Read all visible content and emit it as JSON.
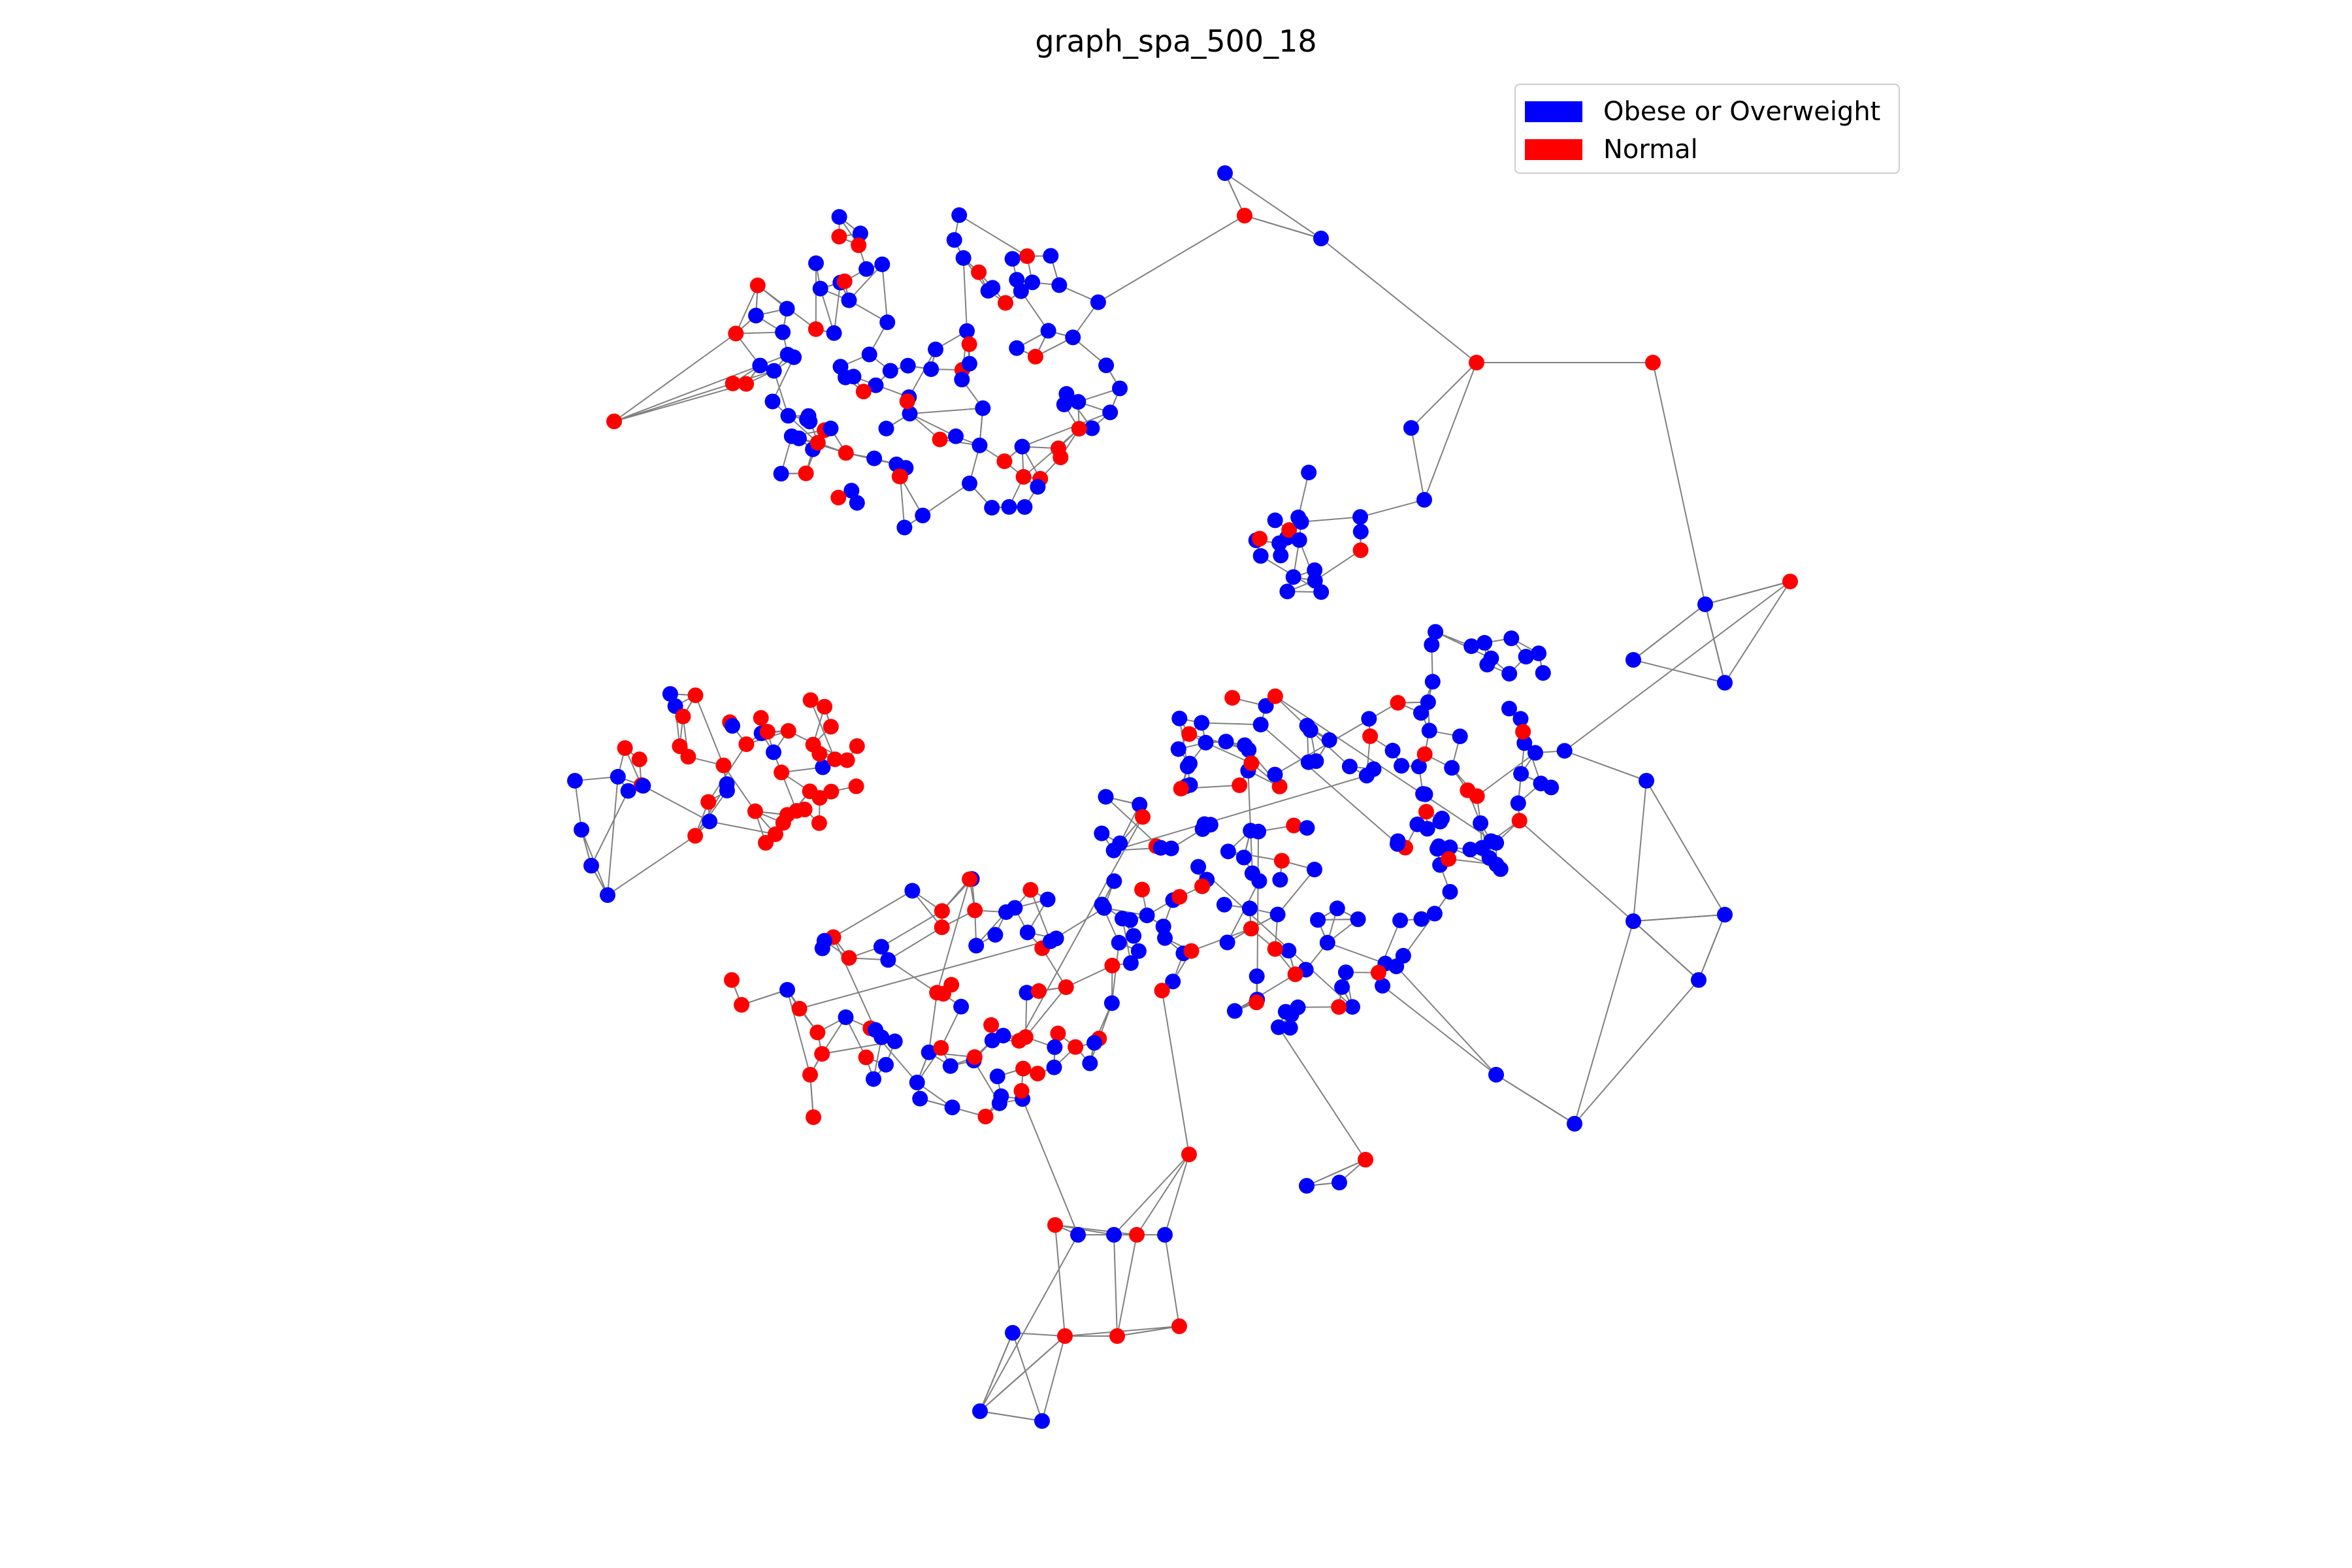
{
  "figure": {
    "title": "graph_spa_500_18"
  },
  "legend": {
    "items": [
      {
        "label": "Obese or Overweight",
        "color": "#0000ff"
      },
      {
        "label": "Normal",
        "color": "#ff0000"
      }
    ]
  },
  "style": {
    "edge_color": "#808080",
    "background": "#ffffff"
  }
}
